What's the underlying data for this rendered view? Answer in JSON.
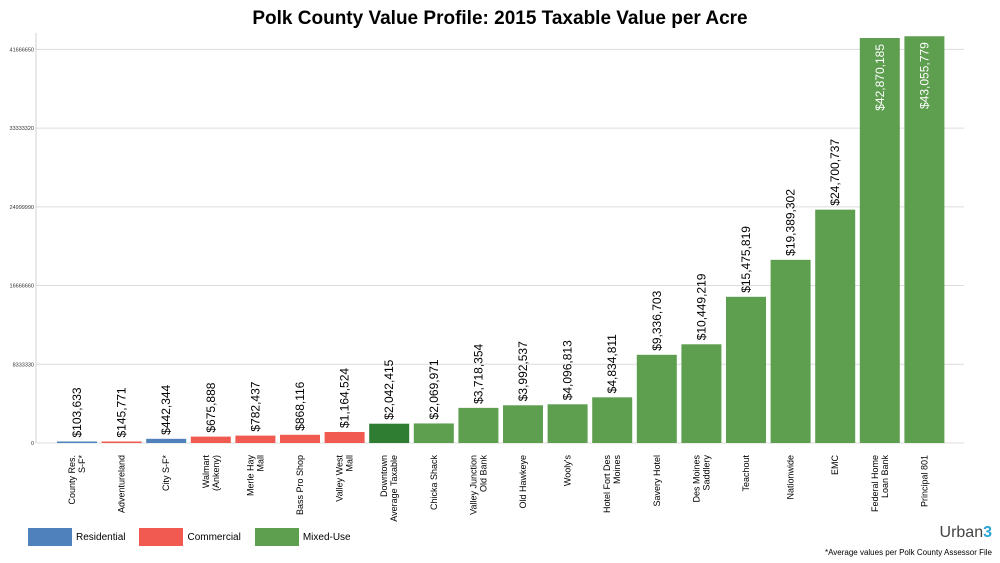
{
  "chart_data": {
    "type": "bar",
    "title": "Polk County Value Profile: 2015 Taxable Value per Acre",
    "ylim": [
      0,
      43400000
    ],
    "yticks": [
      "0",
      "8333330",
      "16666660",
      "24999990",
      "33333320",
      "41666650"
    ],
    "ytick_values": [
      0,
      8333330,
      16666660,
      24999990,
      33333320,
      41666650
    ],
    "grid": true,
    "categories": [
      "County Res. S-F*",
      "Adventureland",
      "City S-F*",
      "Walmart (Ankeny)",
      "Merle Hay Mall",
      "Bass Pro Shop",
      "Valley West Mall",
      "Downtown Average Taxable",
      "Chicka Shack",
      "Valley Junction Old Bank",
      "Old Hawkeye",
      "Wooly's",
      "Hotel Fort Des Moines",
      "Savery Hotel",
      "Des Moines Saddlery",
      "Teachout",
      "Nationwide",
      "EMC",
      "Federal Home Loan Bank",
      "Principal 801"
    ],
    "category_lines": [
      [
        "County Res.",
        "S-F*"
      ],
      [
        "Adventureland"
      ],
      [
        "City S-F*"
      ],
      [
        "Walmart",
        "(Ankeny)"
      ],
      [
        "Merle Hay",
        "Mall"
      ],
      [
        "Bass Pro Shop"
      ],
      [
        "Valley West",
        "Mall"
      ],
      [
        "Downtown",
        "Average Taxable"
      ],
      [
        "Chicka Shack"
      ],
      [
        "Valley Junction",
        "Old Bank"
      ],
      [
        "Old Hawkeye"
      ],
      [
        "Wooly's"
      ],
      [
        "Hotel Fort Des",
        "Moines"
      ],
      [
        "Savery Hotel"
      ],
      [
        "Des Moines",
        "Saddlery"
      ],
      [
        "Teachout"
      ],
      [
        "Nationwide"
      ],
      [
        "EMC"
      ],
      [
        "Federal Home",
        "Loan Bank"
      ],
      [
        "Principal 801"
      ]
    ],
    "values": [
      103633,
      145771,
      442344,
      675888,
      782437,
      868116,
      1164524,
      2042415,
      2069971,
      3718354,
      3992537,
      4096813,
      4834811,
      9336703,
      10449219,
      15475819,
      19389302,
      24700737,
      42870185,
      43055779
    ],
    "labels": [
      "$103,633",
      "$145,771",
      "$442,344",
      "$675,888",
      "$782,437",
      "$868,116",
      "$1,164,524",
      "$2,042,415",
      "$2,069,971",
      "$3,718,354",
      "$3,992,537",
      "$4,096,813",
      "$4,834,811",
      "$9,336,703",
      "$10,449,219",
      "$15,475,819",
      "$19,389,302",
      "$24,700,737",
      "$42,870,185",
      "$43,055,779"
    ],
    "categories_type": [
      "Residential",
      "Commercial",
      "Residential",
      "Commercial",
      "Commercial",
      "Commercial",
      "Commercial",
      "Mixed-Use",
      "Mixed-Use",
      "Mixed-Use",
      "Mixed-Use",
      "Mixed-Use",
      "Mixed-Use",
      "Mixed-Use",
      "Mixed-Use",
      "Mixed-Use",
      "Mixed-Use",
      "Mixed-Use",
      "Mixed-Use",
      "Mixed-Use"
    ],
    "bar_colors": [
      "#4f81bd",
      "#f15a50",
      "#4f81bd",
      "#f15a50",
      "#f15a50",
      "#f15a50",
      "#f15a50",
      "#2e7d32",
      "#5e9e4f",
      "#5e9e4f",
      "#5e9e4f",
      "#5e9e4f",
      "#5e9e4f",
      "#5e9e4f",
      "#5e9e4f",
      "#5e9e4f",
      "#5e9e4f",
      "#5e9e4f",
      "#5e9e4f",
      "#5e9e4f"
    ],
    "legend": [
      {
        "name": "Residential",
        "color": "#4f81bd"
      },
      {
        "name": "Commercial",
        "color": "#f15a50"
      },
      {
        "name": "Mixed-Use",
        "color": "#5e9e4f"
      }
    ],
    "legend_placement": "bottom-left"
  },
  "brand": {
    "text": "Urban",
    "num": "3"
  },
  "footnote": "*Average values per Polk County Assessor File"
}
